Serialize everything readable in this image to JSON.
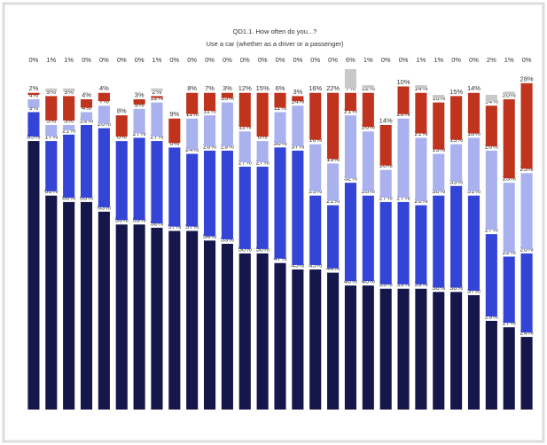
{
  "chart_data": {
    "type": "stacked_bar",
    "title": "QD1.1. How often do you...?",
    "subtitle": "Use a car (whether as a driver or a passenger)",
    "series": [
      {
        "color": "#15174a",
        "values": [
          85,
          68,
          66,
          66,
          63,
          59,
          59,
          58,
          57,
          57,
          54,
          53,
          50,
          50,
          47,
          45,
          45,
          44,
          40,
          40,
          39,
          39,
          39,
          38,
          38,
          37,
          29,
          27,
          24
        ],
        "value_labels": [
          "85%",
          "68%",
          "66%",
          "66%",
          "63%",
          "59%",
          "59%",
          "58%",
          "57%",
          "57%",
          "54%",
          "53%",
          "50%",
          "50%",
          "47%",
          "45%",
          "45%",
          "44%",
          "40%",
          "40%",
          "39%",
          "39%",
          "39%",
          "38%",
          "38%",
          "37%",
          "29%",
          "27%",
          "24%"
        ]
      },
      {
        "color": "#3344d6",
        "values": [
          9,
          17,
          21,
          24,
          26,
          26,
          27,
          27,
          26,
          24,
          28,
          29,
          27,
          27,
          36,
          37,
          23,
          21,
          32,
          28,
          27,
          27,
          26,
          30,
          33,
          31,
          27,
          22,
          26
        ],
        "value_labels": [
          "9%",
          "17%",
          "21%",
          "24%",
          "26%",
          "26%",
          "27%",
          "27%",
          "26%",
          "24%",
          "28%",
          "29%",
          "27%",
          "27%",
          "36%",
          "37%",
          "23%",
          "21%",
          "32%",
          "28%",
          "27%",
          "27%",
          "26%",
          "30%",
          "33%",
          "31%",
          "27%",
          "22%",
          "26%"
        ]
      },
      {
        "color": "#a9b2ef",
        "values": [
          4,
          5,
          3,
          4,
          7,
          0,
          9,
          12,
          0,
          11,
          11,
          15,
          11,
          8,
          11,
          14,
          16,
          13,
          21,
          20,
          10,
          26,
          21,
          13,
          13,
          18,
          26,
          23,
          25
        ],
        "value_labels": [
          "4%",
          "5%",
          "3%",
          "4%",
          "7%",
          "0%",
          "9%",
          "12%",
          "0%",
          "11%",
          "11%",
          "15%",
          "11%",
          "8%",
          "11%",
          "14%",
          "16%",
          "13%",
          "21%",
          "20%",
          "10%",
          "26%",
          "21%",
          "13%",
          "13%",
          "18%",
          "26%",
          "23%",
          "25%"
        ]
      },
      {
        "color": "#c0331c",
        "values": [
          2,
          9,
          9,
          4,
          4,
          8,
          3,
          2,
          9,
          8,
          7,
          3,
          12,
          15,
          6,
          3,
          16,
          22,
          7,
          12,
          14,
          10,
          14,
          16,
          15,
          14,
          14,
          26,
          28
        ],
        "value_labels": [
          "2%",
          "9%",
          "9%",
          "4%",
          "4%",
          "8%",
          "3%",
          "2%",
          "9%",
          "8%",
          "7%",
          "3%",
          "12%",
          "15%",
          "6%",
          "3%",
          "16%",
          "22%",
          "7%",
          "12%",
          "14%",
          "10%",
          "14%",
          "16%",
          "15%",
          "14%",
          "14%",
          "26%",
          "28%"
        ]
      },
      {
        "color": "#c8c8c8",
        "values": [
          0,
          1,
          1,
          0,
          0,
          0,
          0,
          1,
          0,
          0,
          0,
          0,
          0,
          0,
          0,
          0,
          0,
          0,
          6,
          1,
          0,
          0,
          1,
          1,
          0,
          0,
          2,
          1,
          0
        ],
        "value_labels": [
          "0%",
          "1%",
          "1%",
          "0%",
          "0%",
          "0%",
          "0%",
          "1%",
          "0%",
          "0%",
          "0%",
          "0%",
          "0%",
          "0%",
          "0%",
          "0%",
          "0%",
          "0%",
          "6%",
          "1%",
          "0%",
          "0%",
          "1%",
          "1%",
          "0%",
          "0%",
          "2%",
          "1%",
          "0%"
        ]
      }
    ]
  }
}
